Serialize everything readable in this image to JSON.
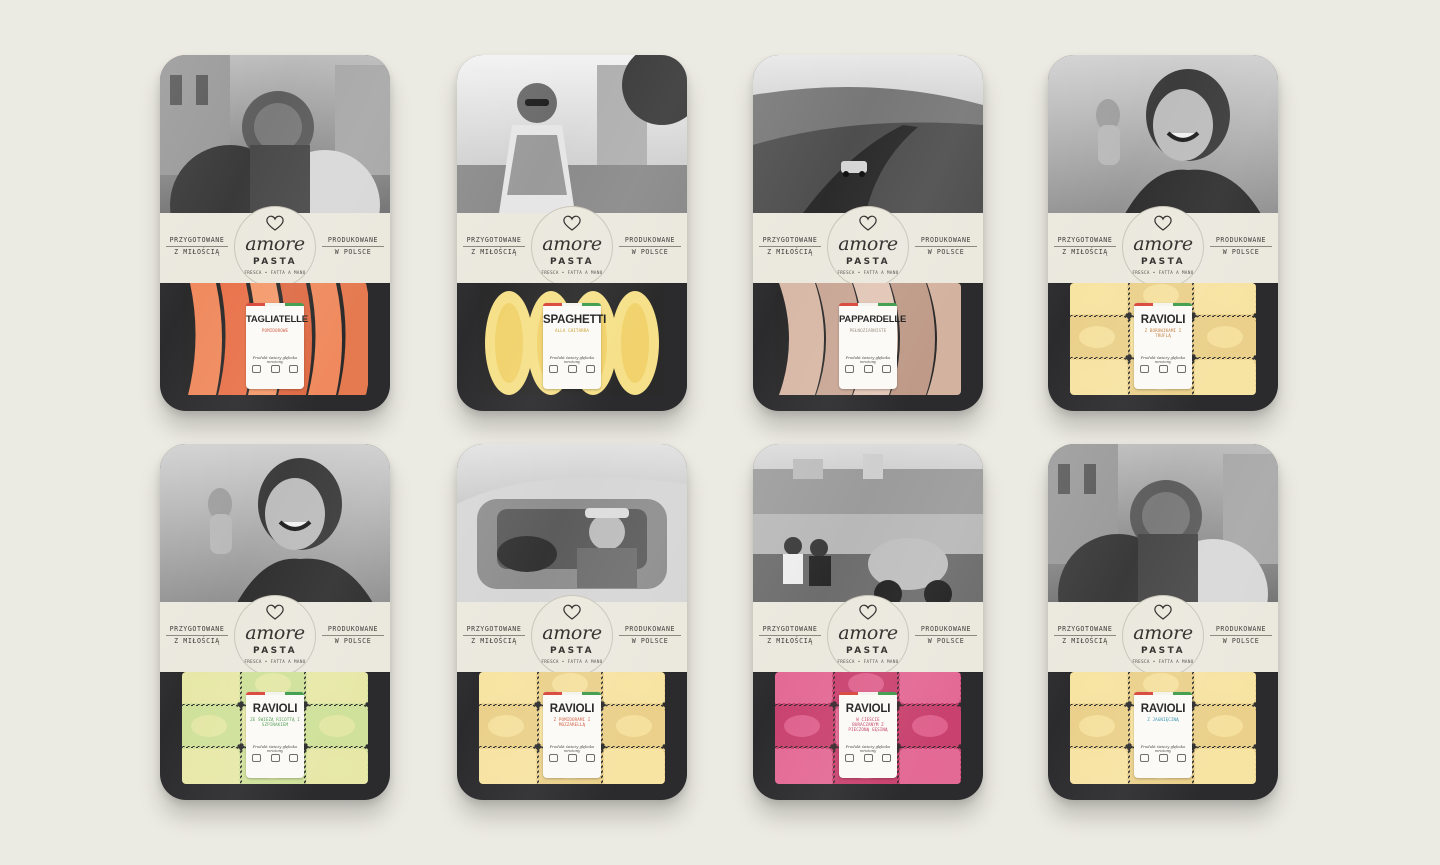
{
  "brand": {
    "word": "amore",
    "pasta": "PASTA",
    "sub": "FRESCA • FATTA A MANO",
    "left_line1": "PRZYGOTOWANE",
    "left_line2": "Z MIŁOŚCIĄ",
    "right_line1": "PRODUKOWANE",
    "right_line2": "W POLSCE"
  },
  "tagline": "Produkt świeży głęboko mrożony",
  "flag_colors": [
    "#d8453a",
    "#f4f3ee",
    "#3d9b4a"
  ],
  "packs": [
    {
      "name": "TAGLIATELLE",
      "sub": "POMIDOROWE",
      "sub_color": "#d0573c",
      "photo": "hat-couple",
      "pasta": "tagliatelle-tomato"
    },
    {
      "name": "SPAGHETTI",
      "sub": "ALLA CHITARRA",
      "sub_color": "#c99a2a",
      "photo": "sunglasses-woman",
      "pasta": "spaghetti"
    },
    {
      "name": "PAPPARDELLE",
      "sub": "PEŁNOZIARNISTE",
      "sub_color": "#9c8a7a",
      "photo": "coast-road",
      "pasta": "pappardelle-wholegrain"
    },
    {
      "name": "RAVIOLI",
      "sub": "Z BOROWIKAMI I TRUFLĄ",
      "sub_color": "#c27a3a",
      "photo": "laughing-woman",
      "pasta": "ravioli-yellow"
    },
    {
      "name": "RAVIOLI",
      "sub": "ZE ŚWIEŻĄ RICOTTĄ I SZPINAKIEM",
      "sub_color": "#4e9b50",
      "photo": "laughing-woman",
      "pasta": "ravioli-spinach"
    },
    {
      "name": "RAVIOLI",
      "sub": "Z POMIDORAMI I MOZZARELLĄ",
      "sub_color": "#d0573c",
      "photo": "car-man",
      "pasta": "ravioli-yellow"
    },
    {
      "name": "RAVIOLI",
      "sub": "W CIEŚCIE BURACZANYM Z PIECZONĄ GĘSINĄ",
      "sub_color": "#c23a5f",
      "photo": "scooter-harbour",
      "pasta": "ravioli-beet"
    },
    {
      "name": "RAVIOLI",
      "sub": "Z JAGNIĘCINĄ",
      "sub_color": "#2f8fb0",
      "photo": "hat-couple",
      "pasta": "ravioli-yellow"
    }
  ]
}
